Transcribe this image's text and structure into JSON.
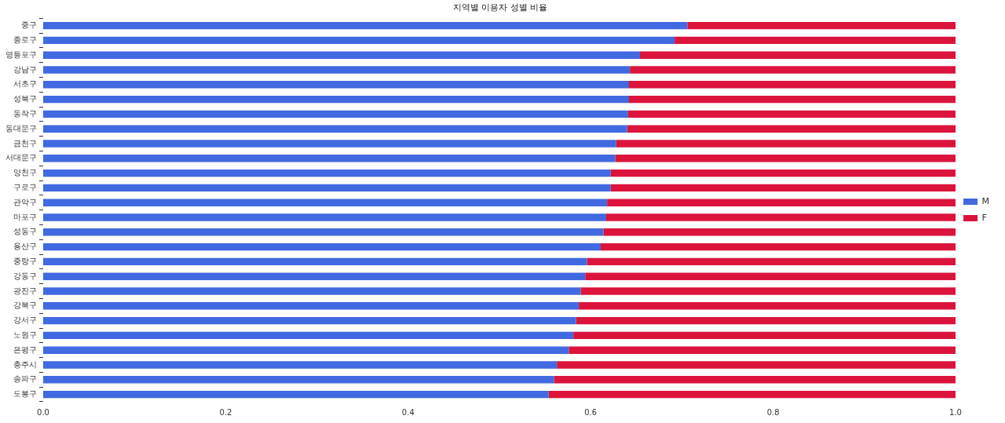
{
  "chart_data": {
    "type": "bar",
    "orientation": "horizontal",
    "stacked": true,
    "title": "지역별 이용자 성별 비율",
    "categories": [
      "중구",
      "종로구",
      "영등포구",
      "강남구",
      "서초구",
      "성북구",
      "동작구",
      "동대문구",
      "금천구",
      "서대문구",
      "양천구",
      "구로구",
      "관악구",
      "마포구",
      "성동구",
      "용산구",
      "중랑구",
      "강동구",
      "광진구",
      "강북구",
      "강서구",
      "노원구",
      "은평구",
      "충주시",
      "송파구",
      "도봉구"
    ],
    "series": [
      {
        "name": "M",
        "color": "#4169e1",
        "values": [
          0.706,
          0.692,
          0.654,
          0.643,
          0.642,
          0.642,
          0.641,
          0.64,
          0.628,
          0.627,
          0.622,
          0.622,
          0.618,
          0.617,
          0.614,
          0.611,
          0.596,
          0.594,
          0.589,
          0.587,
          0.584,
          0.581,
          0.576,
          0.563,
          0.56,
          0.554
        ]
      },
      {
        "name": "F",
        "color": "#dc143c",
        "values": [
          0.294,
          0.308,
          0.346,
          0.357,
          0.358,
          0.358,
          0.359,
          0.36,
          0.372,
          0.373,
          0.378,
          0.378,
          0.382,
          0.383,
          0.386,
          0.389,
          0.404,
          0.406,
          0.411,
          0.413,
          0.416,
          0.419,
          0.424,
          0.437,
          0.44,
          0.446
        ]
      }
    ],
    "xlim": [
      0,
      1
    ],
    "xticks": [
      {
        "value": 0,
        "label": "0.0"
      },
      {
        "value": 0.2,
        "label": "0.2"
      },
      {
        "value": 0.4,
        "label": "0.4"
      },
      {
        "value": 0.6,
        "label": "0.6"
      },
      {
        "value": 0.8,
        "label": "0.8"
      },
      {
        "value": 1,
        "label": "1.0"
      }
    ],
    "grid": false,
    "legend": "right"
  }
}
